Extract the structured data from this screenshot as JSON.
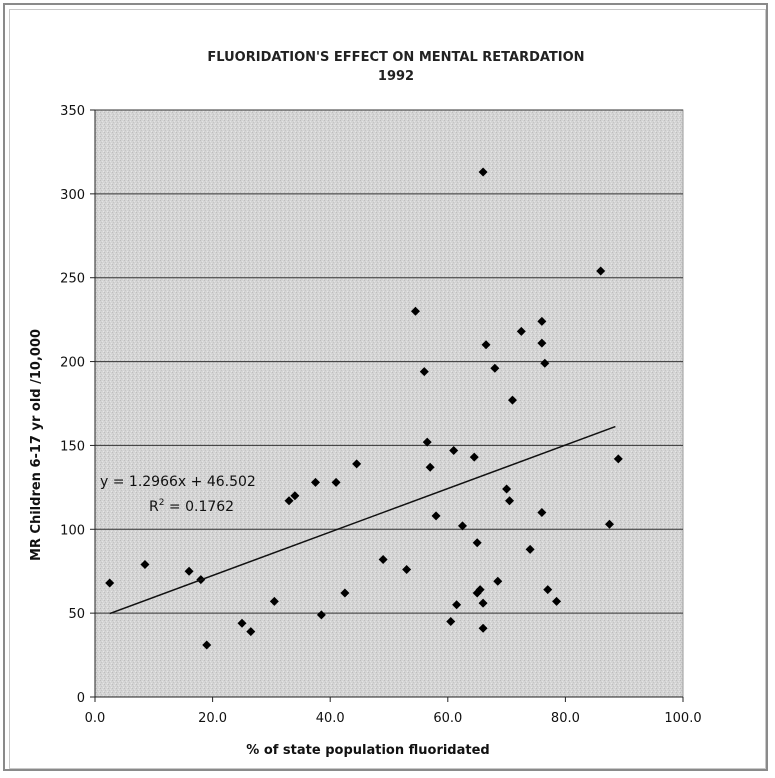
{
  "chart_data": {
    "type": "scatter",
    "title": "FLUORIDATION'S EFFECT ON MENTAL RETARDATION",
    "subtitle": "1992",
    "xlabel": "% of state population fluoridated",
    "ylabel": "MR Children 6-17 yr old /10,000",
    "xlim": [
      0,
      100
    ],
    "ylim": [
      0,
      350
    ],
    "x_ticks": [
      "0.0",
      "20.0",
      "40.0",
      "60.0",
      "80.0",
      "100.0"
    ],
    "y_ticks": [
      "0",
      "50",
      "100",
      "150",
      "200",
      "250",
      "300",
      "350"
    ],
    "grid": "horizontal",
    "points": [
      {
        "x": 2.5,
        "y": 68
      },
      {
        "x": 8.5,
        "y": 79
      },
      {
        "x": 16,
        "y": 75
      },
      {
        "x": 18,
        "y": 70
      },
      {
        "x": 19,
        "y": 31
      },
      {
        "x": 25,
        "y": 44
      },
      {
        "x": 26.5,
        "y": 39
      },
      {
        "x": 30.5,
        "y": 57
      },
      {
        "x": 33,
        "y": 117
      },
      {
        "x": 34,
        "y": 120
      },
      {
        "x": 37.5,
        "y": 128
      },
      {
        "x": 38.5,
        "y": 49
      },
      {
        "x": 41,
        "y": 128
      },
      {
        "x": 42.5,
        "y": 62
      },
      {
        "x": 44.5,
        "y": 139
      },
      {
        "x": 49,
        "y": 82
      },
      {
        "x": 53,
        "y": 76
      },
      {
        "x": 54.5,
        "y": 230
      },
      {
        "x": 56,
        "y": 194
      },
      {
        "x": 56.5,
        "y": 152
      },
      {
        "x": 57,
        "y": 137
      },
      {
        "x": 58,
        "y": 108
      },
      {
        "x": 60.5,
        "y": 45
      },
      {
        "x": 61,
        "y": 147
      },
      {
        "x": 61.5,
        "y": 55
      },
      {
        "x": 62.5,
        "y": 102
      },
      {
        "x": 64.5,
        "y": 143
      },
      {
        "x": 65,
        "y": 62
      },
      {
        "x": 65,
        "y": 92
      },
      {
        "x": 65.5,
        "y": 64
      },
      {
        "x": 66,
        "y": 56
      },
      {
        "x": 66,
        "y": 41
      },
      {
        "x": 66,
        "y": 313
      },
      {
        "x": 66.5,
        "y": 210
      },
      {
        "x": 68,
        "y": 196
      },
      {
        "x": 68.5,
        "y": 69
      },
      {
        "x": 70,
        "y": 124
      },
      {
        "x": 70.5,
        "y": 117
      },
      {
        "x": 71,
        "y": 177
      },
      {
        "x": 72.5,
        "y": 218
      },
      {
        "x": 74,
        "y": 88
      },
      {
        "x": 76,
        "y": 110
      },
      {
        "x": 76,
        "y": 224
      },
      {
        "x": 76,
        "y": 211
      },
      {
        "x": 76.5,
        "y": 199
      },
      {
        "x": 77,
        "y": 64
      },
      {
        "x": 78.5,
        "y": 57
      },
      {
        "x": 86,
        "y": 254
      },
      {
        "x": 87.5,
        "y": 103
      },
      {
        "x": 89,
        "y": 142
      }
    ],
    "trendline": {
      "slope": 1.2966,
      "intercept": 46.502,
      "x_range": [
        2.5,
        88.5
      ],
      "equation": "y = 1.2966x + 46.502",
      "r_squared_prefix": "R",
      "r_squared_exp": "2",
      "r_squared_value": " = 0.1762"
    }
  }
}
